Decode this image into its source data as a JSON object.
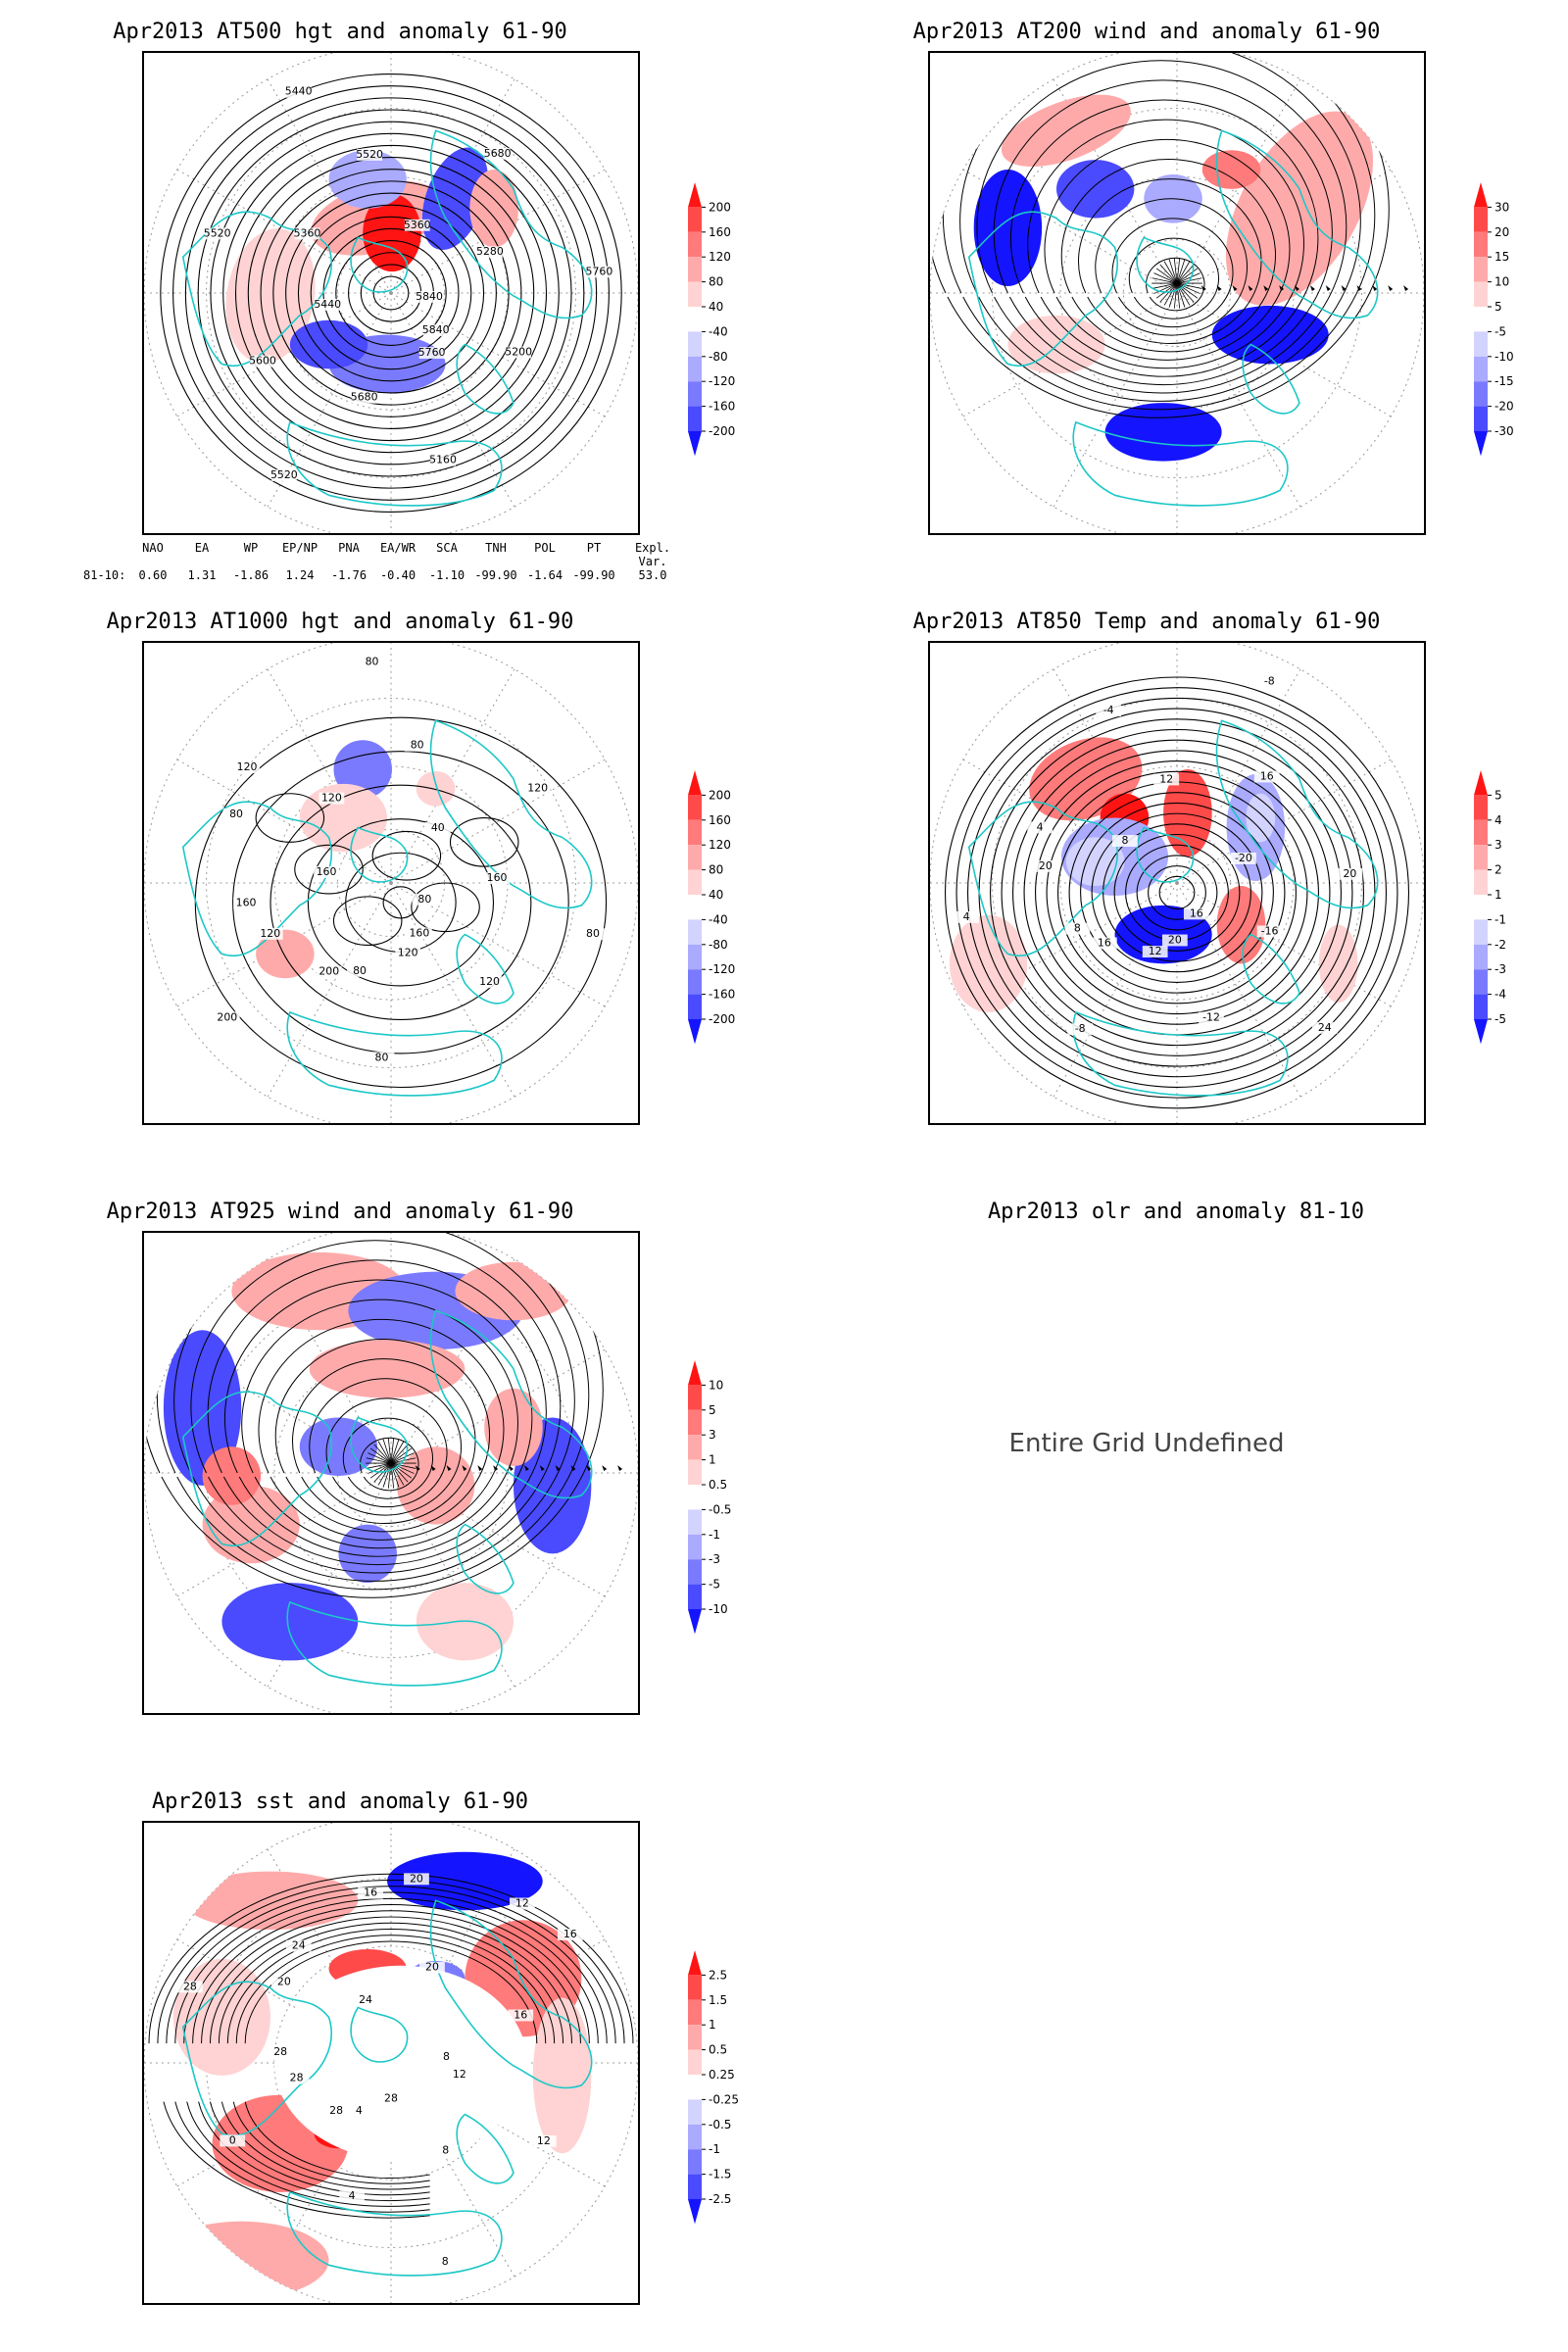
{
  "panels": [
    {
      "id": "p500",
      "title": "Apr2013 AT500 hgt and anomaly 61-90",
      "contour_labels": [
        "5840",
        "5760",
        "5680",
        "5600",
        "5520",
        "5440",
        "5360",
        "5280",
        "5200",
        "5160",
        "5520",
        "5440",
        "5360",
        "5520",
        "5680",
        "5760",
        "5840"
      ],
      "colorbar": [
        "200",
        "160",
        "120",
        "80",
        "40",
        "-40",
        "-80",
        "-120",
        "-160",
        "-200"
      ]
    },
    {
      "id": "p200",
      "title": "Apr2013 AT200 wind and anomaly 61-90",
      "colorbar": [
        "30",
        "20",
        "15",
        "10",
        "5",
        "-5",
        "-10",
        "-15",
        "-20",
        "-30"
      ]
    },
    {
      "id": "p1000",
      "title": "Apr2013 AT1000 hgt and anomaly 61-90",
      "contour_labels": [
        "80",
        "120",
        "200",
        "160",
        "120",
        "80",
        "40",
        "160",
        "120",
        "80",
        "200",
        "160",
        "120",
        "80",
        "120",
        "80",
        "160",
        "80",
        "120",
        "80"
      ],
      "colorbar": [
        "200",
        "160",
        "120",
        "80",
        "40",
        "-40",
        "-80",
        "-120",
        "-160",
        "-200"
      ]
    },
    {
      "id": "p850",
      "title": "Apr2013 AT850 Temp and anomaly 61-90",
      "contour_labels": [
        "16",
        "12",
        "8",
        "4",
        "-4",
        "-8",
        "-20",
        "-16",
        "-12",
        "-8",
        "4",
        "8",
        "12",
        "16",
        "20",
        "24",
        "20",
        "16",
        "20"
      ],
      "colorbar": [
        "5",
        "4",
        "3",
        "2",
        "1",
        "-1",
        "-2",
        "-3",
        "-4",
        "-5"
      ]
    },
    {
      "id": "p925",
      "title": "Apr2013 AT925 wind and anomaly 61-90",
      "colorbar": [
        "10",
        "5",
        "3",
        "1",
        "0.5",
        "-0.5",
        "-1",
        "-3",
        "-5",
        "-10"
      ]
    },
    {
      "id": "polr",
      "title": "Apr2013 olr and anomaly 81-10",
      "message": "Entire Grid Undefined"
    },
    {
      "id": "psst",
      "title": "Apr2013 sst and anomaly 61-90",
      "contour_labels": [
        "28",
        "28",
        "28",
        "24",
        "20",
        "16",
        "12",
        "8",
        "4",
        "0",
        "28",
        "24",
        "20",
        "16",
        "12",
        "8",
        "4",
        "28",
        "20",
        "16",
        "12",
        "8"
      ],
      "colorbar": [
        "2.5",
        "1.5",
        "1",
        "0.5",
        "0.25",
        "-0.25",
        "-0.5",
        "-1",
        "-1.5",
        "-2.5"
      ]
    }
  ],
  "indices": {
    "headers": [
      "NAO",
      "EA",
      "WP",
      "EP/NP",
      "PNA",
      "EA/WR",
      "SCA",
      "TNH",
      "POL",
      "PT",
      "Expl. Var."
    ],
    "row_label": "81-10:",
    "values": [
      "0.60",
      "1.31",
      "-1.86",
      "1.24",
      "-1.76",
      "-0.40",
      "-1.10",
      "-99.90",
      "-1.64",
      "-99.90",
      "53.0"
    ]
  },
  "colors": {
    "coast": "#1cc7c7",
    "contour": "#000000",
    "warm": [
      "#ff1414",
      "#ff4a4a",
      "#ff7a7a",
      "#ffaaaa",
      "#ffd3d3"
    ],
    "cool": [
      "#d3d3ff",
      "#aaaaff",
      "#7a7aff",
      "#4a4aff",
      "#1414ff"
    ]
  }
}
